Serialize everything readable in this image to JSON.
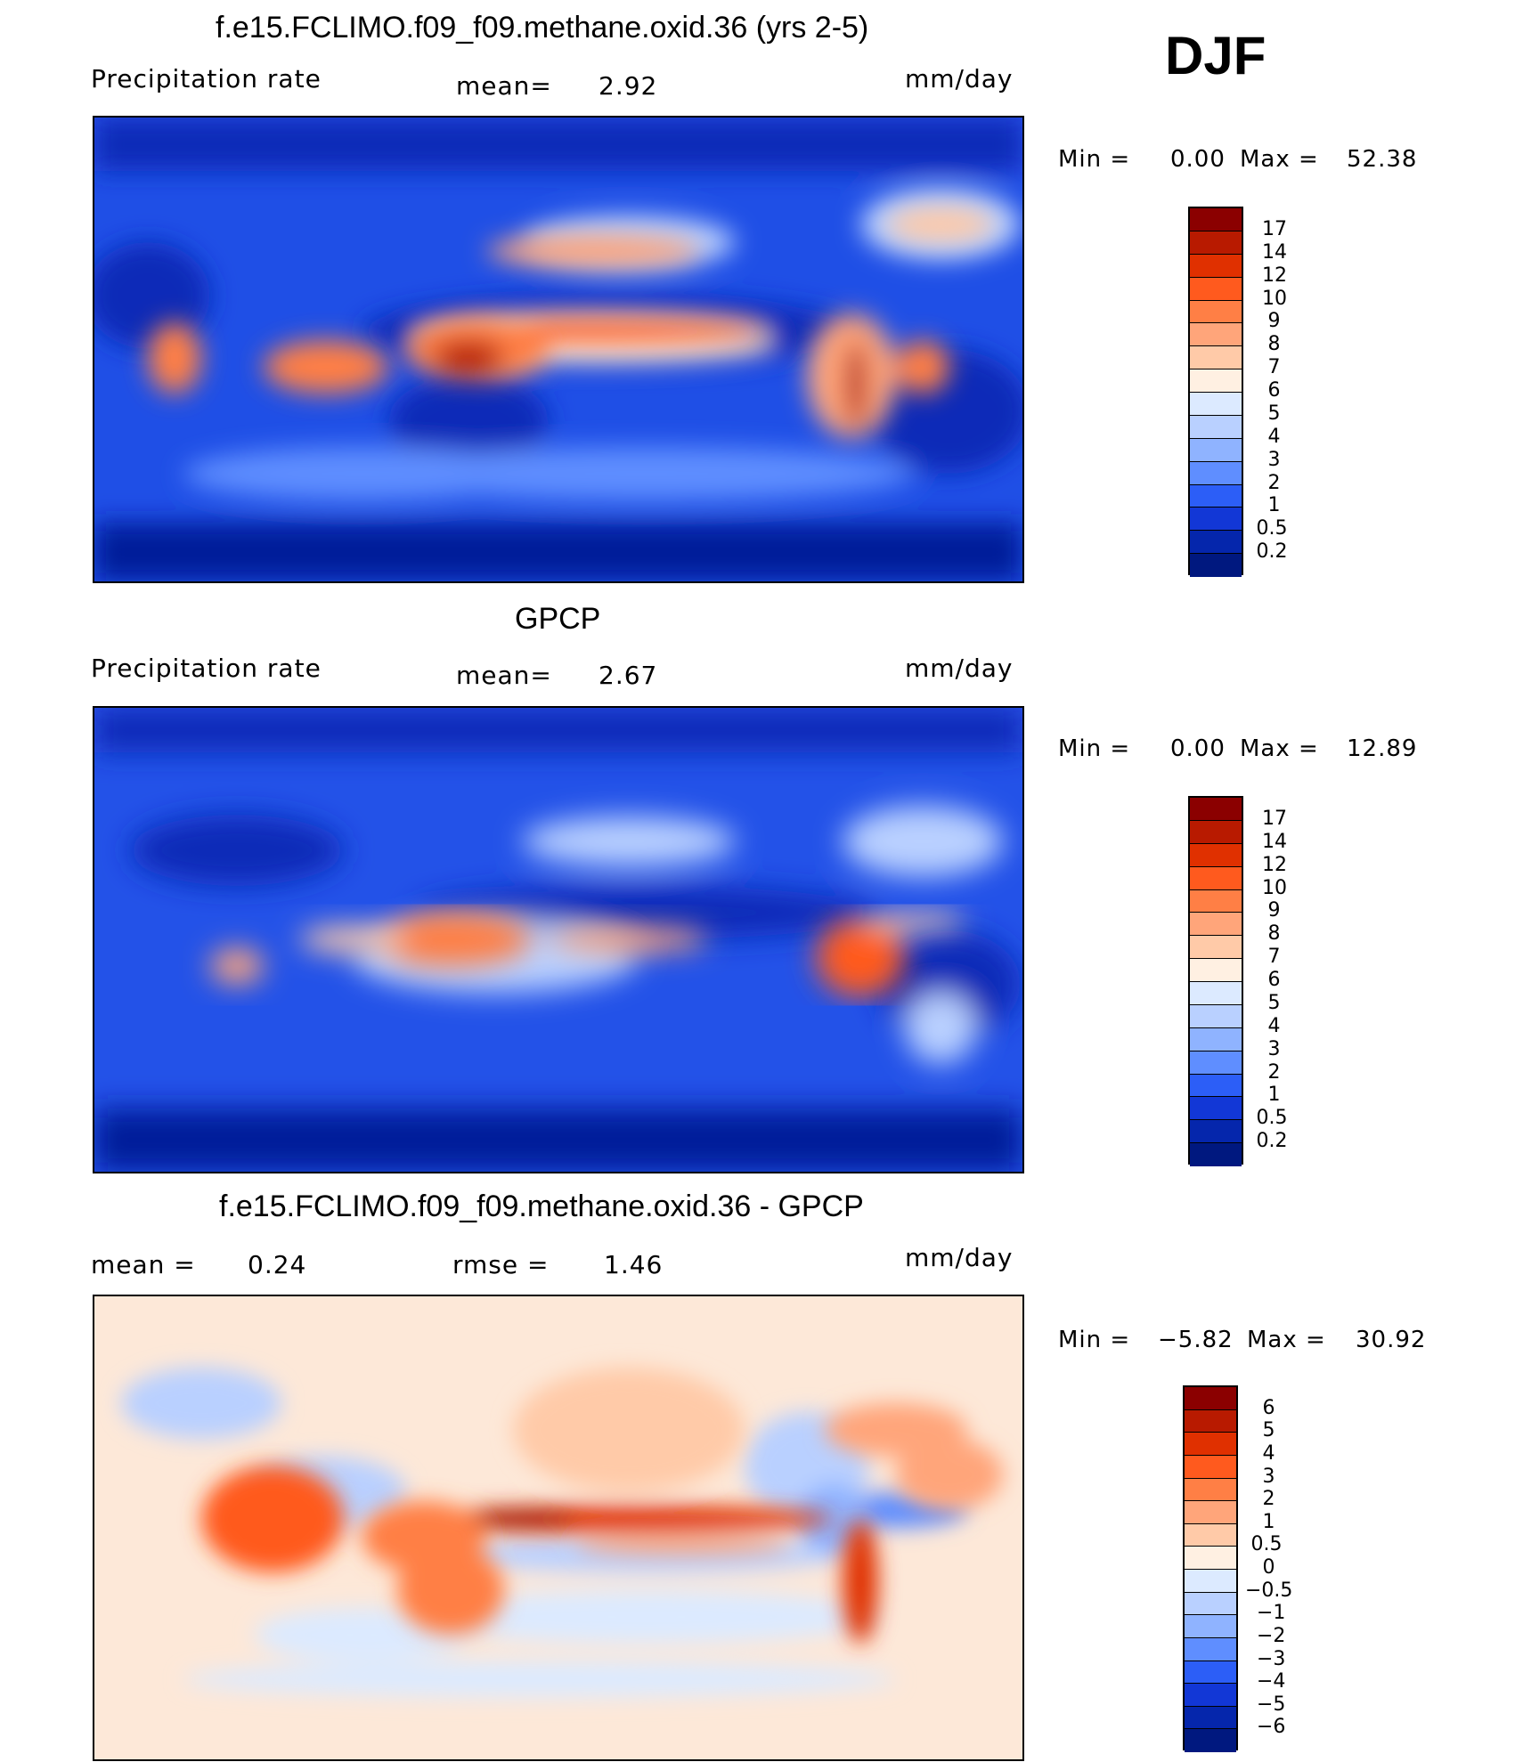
{
  "season": "DJF",
  "panels": [
    {
      "title": "f.e15.FCLIMO.f09_f09.methane.oxid.36 (yrs 2-5)",
      "left_label": "Precipitation  rate",
      "mid_label": "mean=",
      "mid_value": "2.92",
      "units": "mm/day",
      "min_label": "Min  =",
      "min_value": "0.00",
      "max_label": "Max  =",
      "max_value": "52.38",
      "levels": [
        "17",
        "14",
        "12",
        "10",
        "9",
        "8",
        "7",
        "6",
        "5",
        "4",
        "3",
        "2",
        "1",
        "0.5",
        "0.2"
      ],
      "colors": [
        "#8b0000",
        "#b81a00",
        "#e03000",
        "#ff5a1e",
        "#ff7f45",
        "#ffa57a",
        "#ffcaa8",
        "#fff0e2",
        "#dceaff",
        "#b9d0ff",
        "#8fb3ff",
        "#5f8eff",
        "#2c5ef7",
        "#1237d6",
        "#0526ac",
        "#00187f"
      ]
    },
    {
      "title": "GPCP",
      "left_label": "Precipitation  rate",
      "mid_label": "mean=",
      "mid_value": "2.67",
      "units": "mm/day",
      "min_label": "Min  =",
      "min_value": "0.00",
      "max_label": "Max  =",
      "max_value": "12.89",
      "levels": [
        "17",
        "14",
        "12",
        "10",
        "9",
        "8",
        "7",
        "6",
        "5",
        "4",
        "3",
        "2",
        "1",
        "0.5",
        "0.2"
      ],
      "colors": [
        "#8b0000",
        "#b81a00",
        "#e03000",
        "#ff5a1e",
        "#ff7f45",
        "#ffa57a",
        "#ffcaa8",
        "#fff0e2",
        "#dceaff",
        "#b9d0ff",
        "#8fb3ff",
        "#5f8eff",
        "#2c5ef7",
        "#1237d6",
        "#0526ac",
        "#00187f"
      ]
    },
    {
      "title": "f.e15.FCLIMO.f09_f09.methane.oxid.36 - GPCP",
      "left_label": "mean  =",
      "left_value": "0.24",
      "mid_label": "rmse  =",
      "mid_value": "1.46",
      "units": "mm/day",
      "min_label": "Min  =",
      "min_value": "−5.82",
      "max_label": "Max  =",
      "max_value": "30.92",
      "levels": [
        "6",
        "5",
        "4",
        "3",
        "2",
        "1",
        "0.5",
        "0",
        "−0.5",
        "−1",
        "−2",
        "−3",
        "−4",
        "−5",
        "−6"
      ],
      "colors": [
        "#8b0000",
        "#b81a00",
        "#e03000",
        "#ff5a1e",
        "#ff7f45",
        "#ffa57a",
        "#ffcaa8",
        "#fff0e2",
        "#dceaff",
        "#b9d0ff",
        "#8fb3ff",
        "#5f8eff",
        "#2c5ef7",
        "#1237d6",
        "#0526ac",
        "#00187f"
      ]
    }
  ]
}
